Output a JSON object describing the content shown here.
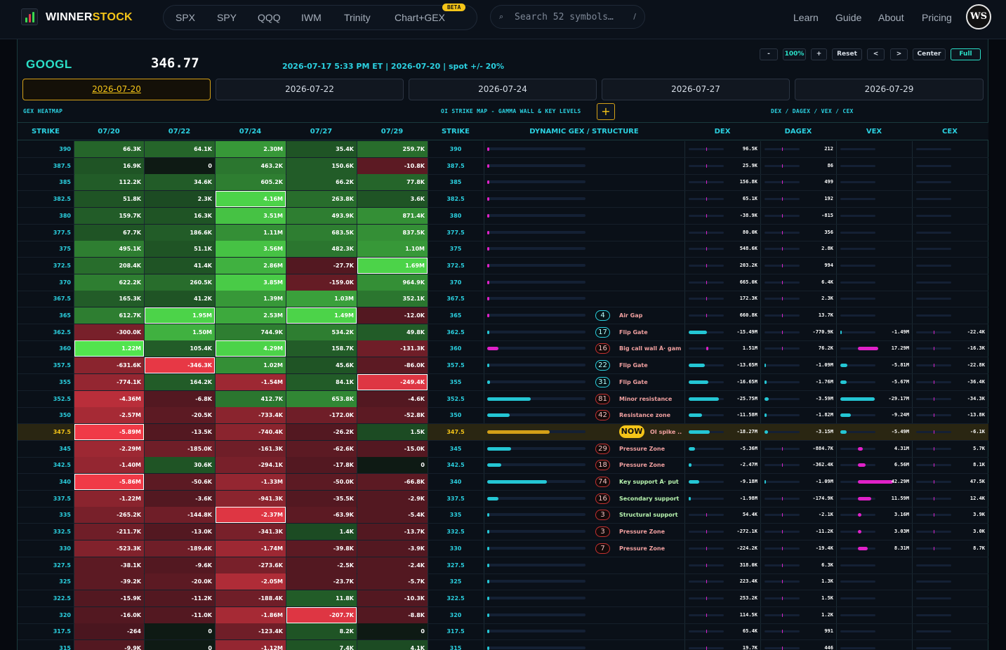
{
  "app": {
    "brand_a": "WINNER",
    "brand_b": "STOCK",
    "beta": "BETA",
    "avatar": "WS"
  },
  "nav": [
    "SPX",
    "SPY",
    "QQQ",
    "IWM",
    "Trinity",
    "Chart+GEX"
  ],
  "right_nav": [
    "Learn",
    "Guide",
    "About",
    "Pricing"
  ],
  "search": {
    "placeholder": "Search 52 symbols…",
    "kbd": "/",
    "icon": "search-icon"
  },
  "header": {
    "symbol": "GOOGL",
    "price": "346.77",
    "info": "2026-07-17 5:33 PM ET | 2026-07-20 | spot +/- 20%"
  },
  "controls": [
    "-",
    "100%",
    "+",
    "Reset",
    "<",
    ">",
    "Center",
    "Full"
  ],
  "date_tabs": [
    "2026-07-20",
    "2026-07-22",
    "2026-07-24",
    "2026-07-27",
    "2026-07-29"
  ],
  "active_tab": 0,
  "sections": {
    "gex": "GEX HEATMAP",
    "oi": "OI STRIKE MAP - GAMMA WALL & KEY LEVELS",
    "dex": "DEX / DAGEX / VEX / CEX",
    "plus": "+"
  },
  "columns": [
    "STRIKE",
    "07/20",
    "07/22",
    "07/24",
    "07/27",
    "07/29",
    "STRIKE",
    "DYNAMIC GEX / STRUCTURE",
    "DEX",
    "DAGEX",
    "VEX",
    "CEX"
  ],
  "colors": {
    "accent": "#2bd0e0",
    "gold": "#f5c518",
    "pos": "#3ad84e",
    "neg": "#e23b4a",
    "magenta": "#e021c8"
  },
  "spot_strike": "347.5",
  "rows": [
    {
      "strike": "390",
      "gex": [
        "66.3K",
        "64.1K",
        "2.30M",
        "35.4K",
        "259.7K"
      ],
      "hm": [
        0.25,
        0.25,
        0.55,
        0.15,
        0.3
      ],
      "dyn": 0.02,
      "dex": "96.5K",
      "dagex": "212",
      "vex": "",
      "cex": ""
    },
    {
      "strike": "387.5",
      "gex": [
        "16.9K",
        "0",
        "463.2K",
        "150.6K",
        "-10.8K"
      ],
      "hm": [
        0.15,
        0,
        0.35,
        0.2,
        -0.2
      ],
      "dyn": 0.01,
      "dex": "25.9K",
      "dagex": "86",
      "vex": "",
      "cex": ""
    },
    {
      "strike": "385",
      "gex": [
        "112.2K",
        "34.6K",
        "605.2K",
        "66.2K",
        "77.8K"
      ],
      "hm": [
        0.2,
        0.2,
        0.4,
        0.2,
        0.25
      ],
      "dyn": 0.01,
      "dex": "156.8K",
      "dagex": "499",
      "vex": "",
      "cex": ""
    },
    {
      "strike": "382.5",
      "gex": [
        "51.8K",
        "2.3K",
        "4.16M",
        "263.8K",
        "3.6K"
      ],
      "hm": [
        0.15,
        0.1,
        0.9,
        0.3,
        0.15
      ],
      "dyn": 0.01,
      "dex": "65.1K",
      "dagex": "192",
      "vex": "",
      "cex": ""
    },
    {
      "strike": "380",
      "gex": [
        "159.7K",
        "16.3K",
        "3.51M",
        "493.9K",
        "871.4K"
      ],
      "hm": [
        0.2,
        0.15,
        0.8,
        0.4,
        0.5
      ],
      "dyn": 0.01,
      "dex": "-38.9K",
      "dagex": "-815",
      "vex": "",
      "cex": ""
    },
    {
      "strike": "377.5",
      "gex": [
        "67.7K",
        "186.6K",
        "1.11M",
        "683.5K",
        "837.5K"
      ],
      "hm": [
        0.15,
        0.2,
        0.5,
        0.4,
        0.5
      ],
      "dyn": 0.01,
      "dex": "80.0K",
      "dagex": "356",
      "vex": "",
      "cex": ""
    },
    {
      "strike": "375",
      "gex": [
        "495.1K",
        "51.1K",
        "3.56M",
        "482.3K",
        "1.10M"
      ],
      "hm": [
        0.4,
        0.15,
        0.8,
        0.35,
        0.55
      ],
      "dyn": 0.03,
      "dex": "548.6K",
      "dagex": "2.8K",
      "vex": "",
      "cex": ""
    },
    {
      "strike": "372.5",
      "gex": [
        "208.4K",
        "41.4K",
        "2.86M",
        "-27.7K",
        "1.69M"
      ],
      "hm": [
        0.3,
        0.15,
        0.7,
        -0.15,
        0.9
      ],
      "dyn": 0.02,
      "dex": "203.2K",
      "dagex": "994",
      "vex": "",
      "cex": ""
    },
    {
      "strike": "370",
      "gex": [
        "622.2K",
        "260.5K",
        "3.85M",
        "-159.0K",
        "964.9K"
      ],
      "hm": [
        0.4,
        0.3,
        0.85,
        -0.25,
        0.5
      ],
      "dyn": 0.03,
      "dex": "665.0K",
      "dagex": "6.4K",
      "vex": "",
      "cex": ""
    },
    {
      "strike": "367.5",
      "gex": [
        "165.3K",
        "41.2K",
        "1.39M",
        "1.03M",
        "352.1K"
      ],
      "hm": [
        0.2,
        0.15,
        0.55,
        0.6,
        0.35
      ],
      "dyn": 0.01,
      "dex": "172.3K",
      "dagex": "2.3K",
      "vex": "",
      "cex": ""
    },
    {
      "strike": "365",
      "gex": [
        "612.7K",
        "1.95M",
        "2.53M",
        "1.49M",
        "-12.0K"
      ],
      "hm": [
        0.4,
        0.9,
        0.65,
        0.9,
        -0.15
      ],
      "dyn": 0.03,
      "badge": "4",
      "bt": "t",
      "label": "Air Gap",
      "lc": "#f0a0a0",
      "dex": "660.8K",
      "dagex": "13.7K",
      "vex": "",
      "cex": ""
    },
    {
      "strike": "362.5",
      "gex": [
        "-300.0K",
        "1.50M",
        "744.9K",
        "534.2K",
        "49.8K"
      ],
      "hm": [
        -0.35,
        0.7,
        0.4,
        0.4,
        0.2
      ],
      "dyn": 0.02,
      "badge": "17",
      "bt": "t",
      "label": "Flip Gate",
      "lc": "#f0a0a0",
      "dex": "-15.49M",
      "dagex": "-770.9K",
      "vex": "-1.49M",
      "cex": "-22.4K"
    },
    {
      "strike": "360",
      "gex": [
        "1.22M",
        "105.4K",
        "4.29M",
        "158.7K",
        "-131.3K"
      ],
      "hm": [
        1,
        0.2,
        0.9,
        0.2,
        -0.3
      ],
      "dyn": 0.18,
      "dc": "#e021c8",
      "badge": "16",
      "bt": "r",
      "label": "Big call wall Â· gam...",
      "lc": "#f0a0a0",
      "dex": "1.51M",
      "dagex": "76.2K",
      "vex": "17.29M",
      "cex": "-16.3K"
    },
    {
      "strike": "357.5",
      "gex": [
        "-631.6K",
        "-346.3K",
        "1.02M",
        "45.6K",
        "-86.0K"
      ],
      "hm": [
        -0.45,
        -0.95,
        0.5,
        0.15,
        -0.2
      ],
      "dyn": 0.03,
      "badge": "22",
      "bt": "t",
      "label": "Flip Gate",
      "lc": "#f0a0a0",
      "dex": "-13.65M",
      "dagex": "-1.09M",
      "vex": "-5.81M",
      "cex": "-22.8K"
    },
    {
      "strike": "355",
      "gex": [
        "-774.1K",
        "164.2K",
        "-1.54M",
        "84.1K",
        "-249.4K"
      ],
      "hm": [
        -0.5,
        0.2,
        -0.55,
        0.2,
        -0.9
      ],
      "dyn": 0.04,
      "badge": "31",
      "bt": "t",
      "label": "Flip Gate",
      "lc": "#f0a0a0",
      "dex": "-16.65M",
      "dagex": "-1.76M",
      "vex": "-5.67M",
      "cex": "-36.4K"
    },
    {
      "strike": "352.5",
      "gex": [
        "-4.36M",
        "-6.8K",
        "412.7K",
        "653.8K",
        "-4.6K"
      ],
      "hm": [
        -0.7,
        -0.15,
        0.35,
        0.45,
        -0.15
      ],
      "dyn": 0.7,
      "badge": "81",
      "bt": "r",
      "label": "Minor resistance",
      "lc": "#f0a0a0",
      "dex": "-25.75M",
      "dagex": "-3.59M",
      "vex": "-29.17M",
      "cex": "-34.3K"
    },
    {
      "strike": "350",
      "gex": [
        "-2.57M",
        "-20.5K",
        "-733.4K",
        "-172.0K",
        "-52.8K"
      ],
      "hm": [
        -0.6,
        -0.2,
        -0.45,
        -0.3,
        -0.2
      ],
      "dyn": 0.36,
      "badge": "42",
      "bt": "r",
      "label": "Resistance zone",
      "lc": "#f0a0a0",
      "dex": "-11.58M",
      "dagex": "-1.82M",
      "vex": "-9.24M",
      "cex": "-13.8K"
    },
    {
      "strike": "347.5",
      "gex": [
        "-5.89M",
        "-13.5K",
        "-740.4K",
        "-26.2K",
        "1.5K"
      ],
      "hm": [
        -1,
        -0.15,
        -0.45,
        -0.15,
        0.1
      ],
      "dyn": 1,
      "dc": "#d4a017",
      "now": true,
      "label": "OI spike ...",
      "lc": "#f0a0a0",
      "dex": "-18.27M",
      "dagex": "-3.15M",
      "vex": "-5.49M",
      "cex": "-6.1K"
    },
    {
      "strike": "345",
      "gex": [
        "-2.29M",
        "-185.0K",
        "-161.3K",
        "-62.6K",
        "-15.0K"
      ],
      "hm": [
        -0.55,
        -0.3,
        -0.3,
        -0.2,
        -0.15
      ],
      "dyn": 0.38,
      "badge": "29",
      "bt": "r",
      "label": "Pressure Zone",
      "lc": "#f0a0a0",
      "dex": "-5.36M",
      "dagex": "-884.7K",
      "vex": "4.31M",
      "cex": "5.7K"
    },
    {
      "strike": "342.5",
      "gex": [
        "-1.40M",
        "30.6K",
        "-294.1K",
        "-17.8K",
        "0"
      ],
      "hm": [
        -0.5,
        0.15,
        -0.35,
        -0.15,
        0
      ],
      "dyn": 0.22,
      "badge": "18",
      "bt": "r",
      "label": "Pressure Zone",
      "lc": "#f0a0a0",
      "dex": "-2.47M",
      "dagex": "-362.4K",
      "vex": "6.56M",
      "cex": "8.1K"
    },
    {
      "strike": "340",
      "gex": [
        "-5.86M",
        "-50.6K",
        "-1.33M",
        "-50.0K",
        "-66.8K"
      ],
      "hm": [
        -1,
        -0.2,
        -0.5,
        -0.2,
        -0.2
      ],
      "dyn": 0.95,
      "badge": "74",
      "bt": "r",
      "label": "Key support Â· put ...",
      "lc": "#b8f5b0",
      "dex": "-9.18M",
      "dagex": "-1.09M",
      "vex": "42.29M",
      "cex": "47.5K"
    },
    {
      "strike": "337.5",
      "gex": [
        "-1.22M",
        "-3.6K",
        "-941.3K",
        "-35.5K",
        "-2.9K"
      ],
      "hm": [
        -0.45,
        -0.15,
        -0.45,
        -0.15,
        -0.15
      ],
      "dyn": 0.18,
      "badge": "16",
      "bt": "r",
      "label": "Secondary support",
      "lc": "#b8f5b0",
      "dex": "-1.98M",
      "dagex": "-174.9K",
      "vex": "11.59M",
      "cex": "12.4K"
    },
    {
      "strike": "335",
      "gex": [
        "-265.2K",
        "-144.8K",
        "-2.37M",
        "-63.9K",
        "-5.4K"
      ],
      "hm": [
        -0.35,
        -0.3,
        -0.9,
        -0.2,
        -0.15
      ],
      "dyn": 0.02,
      "badge": "3",
      "bt": "r",
      "label": "Structural support",
      "lc": "#b8f5b0",
      "dex": "54.4K",
      "dagex": "-2.1K",
      "vex": "3.16M",
      "cex": "3.9K"
    },
    {
      "strike": "332.5",
      "gex": [
        "-211.7K",
        "-13.0K",
        "-341.3K",
        "1.4K",
        "-13.7K"
      ],
      "hm": [
        -0.3,
        -0.15,
        -0.35,
        0.1,
        -0.15
      ],
      "dyn": 0.02,
      "badge": "3",
      "bt": "r",
      "label": "Pressure Zone",
      "lc": "#f0a0a0",
      "dex": "-272.1K",
      "dagex": "-11.2K",
      "vex": "3.03M",
      "cex": "3.0K"
    },
    {
      "strike": "330",
      "gex": [
        "-523.3K",
        "-189.4K",
        "-1.74M",
        "-39.8K",
        "-3.9K"
      ],
      "hm": [
        -0.4,
        -0.3,
        -0.55,
        -0.2,
        -0.15
      ],
      "dyn": 0.03,
      "badge": "7",
      "bt": "r",
      "label": "Pressure Zone",
      "lc": "#f0a0a0",
      "dex": "-224.2K",
      "dagex": "-19.4K",
      "vex": "8.31M",
      "cex": "8.7K"
    },
    {
      "strike": "327.5",
      "gex": [
        "-38.1K",
        "-9.6K",
        "-273.6K",
        "-2.5K",
        "-2.4K"
      ],
      "hm": [
        -0.2,
        -0.15,
        -0.35,
        -0.15,
        -0.15
      ],
      "dyn": 0.01,
      "dex": "318.0K",
      "dagex": "6.3K",
      "vex": "",
      "cex": ""
    },
    {
      "strike": "325",
      "gex": [
        "-39.2K",
        "-20.0K",
        "-2.05M",
        "-23.7K",
        "-5.7K"
      ],
      "hm": [
        -0.2,
        -0.2,
        -0.65,
        -0.15,
        -0.15
      ],
      "dyn": 0.01,
      "dex": "223.4K",
      "dagex": "1.3K",
      "vex": "",
      "cex": ""
    },
    {
      "strike": "322.5",
      "gex": [
        "-15.9K",
        "-11.2K",
        "-188.4K",
        "11.8K",
        "-10.3K"
      ],
      "hm": [
        -0.15,
        -0.15,
        -0.3,
        0.2,
        -0.15
      ],
      "dyn": 0.01,
      "dex": "253.2K",
      "dagex": "1.5K",
      "vex": "",
      "cex": ""
    },
    {
      "strike": "320",
      "gex": [
        "-16.0K",
        "-11.0K",
        "-1.86M",
        "-207.7K",
        "-8.8K"
      ],
      "hm": [
        -0.15,
        -0.15,
        -0.6,
        -0.9,
        -0.15
      ],
      "dyn": 0.01,
      "dex": "114.5K",
      "dagex": "1.2K",
      "vex": "",
      "cex": ""
    },
    {
      "strike": "317.5",
      "gex": [
        "-264",
        "0",
        "-123.4K",
        "8.2K",
        "0"
      ],
      "hm": [
        -0.1,
        0,
        -0.3,
        0.15,
        0
      ],
      "dyn": 0.01,
      "dex": "65.4K",
      "dagex": "991",
      "vex": "",
      "cex": ""
    },
    {
      "strike": "315",
      "gex": [
        "-9.9K",
        "0",
        "-1.12M",
        "7.4K",
        "4.1K"
      ],
      "hm": [
        -0.15,
        0,
        -0.5,
        0.15,
        0.1
      ],
      "dyn": 0.01,
      "dex": "19.7K",
      "dagex": "446",
      "vex": "",
      "cex": ""
    }
  ]
}
